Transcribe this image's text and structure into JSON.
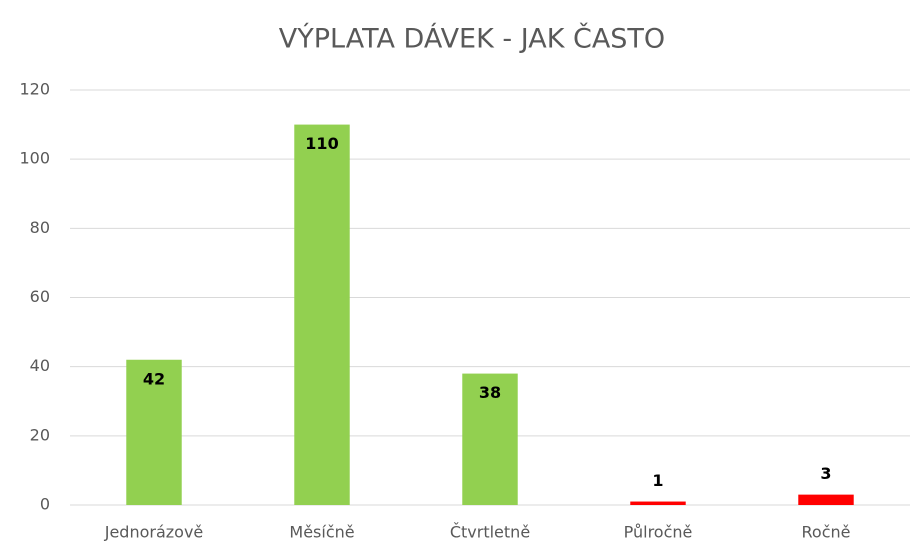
{
  "chart_data": {
    "type": "bar",
    "title": "VÝPLATA DÁVEK - JAK ČASTO",
    "categories": [
      "Jednorázově",
      "Měsíčně",
      "Čtvrtletně",
      "Půlročně",
      "Ročně"
    ],
    "values": [
      42,
      110,
      38,
      1,
      3
    ],
    "colors": [
      "#92d050",
      "#92d050",
      "#92d050",
      "#ff0000",
      "#ff0000"
    ],
    "ylim": [
      0,
      120
    ],
    "yticks": [
      0,
      20,
      40,
      60,
      80,
      100,
      120
    ],
    "grid": true
  }
}
